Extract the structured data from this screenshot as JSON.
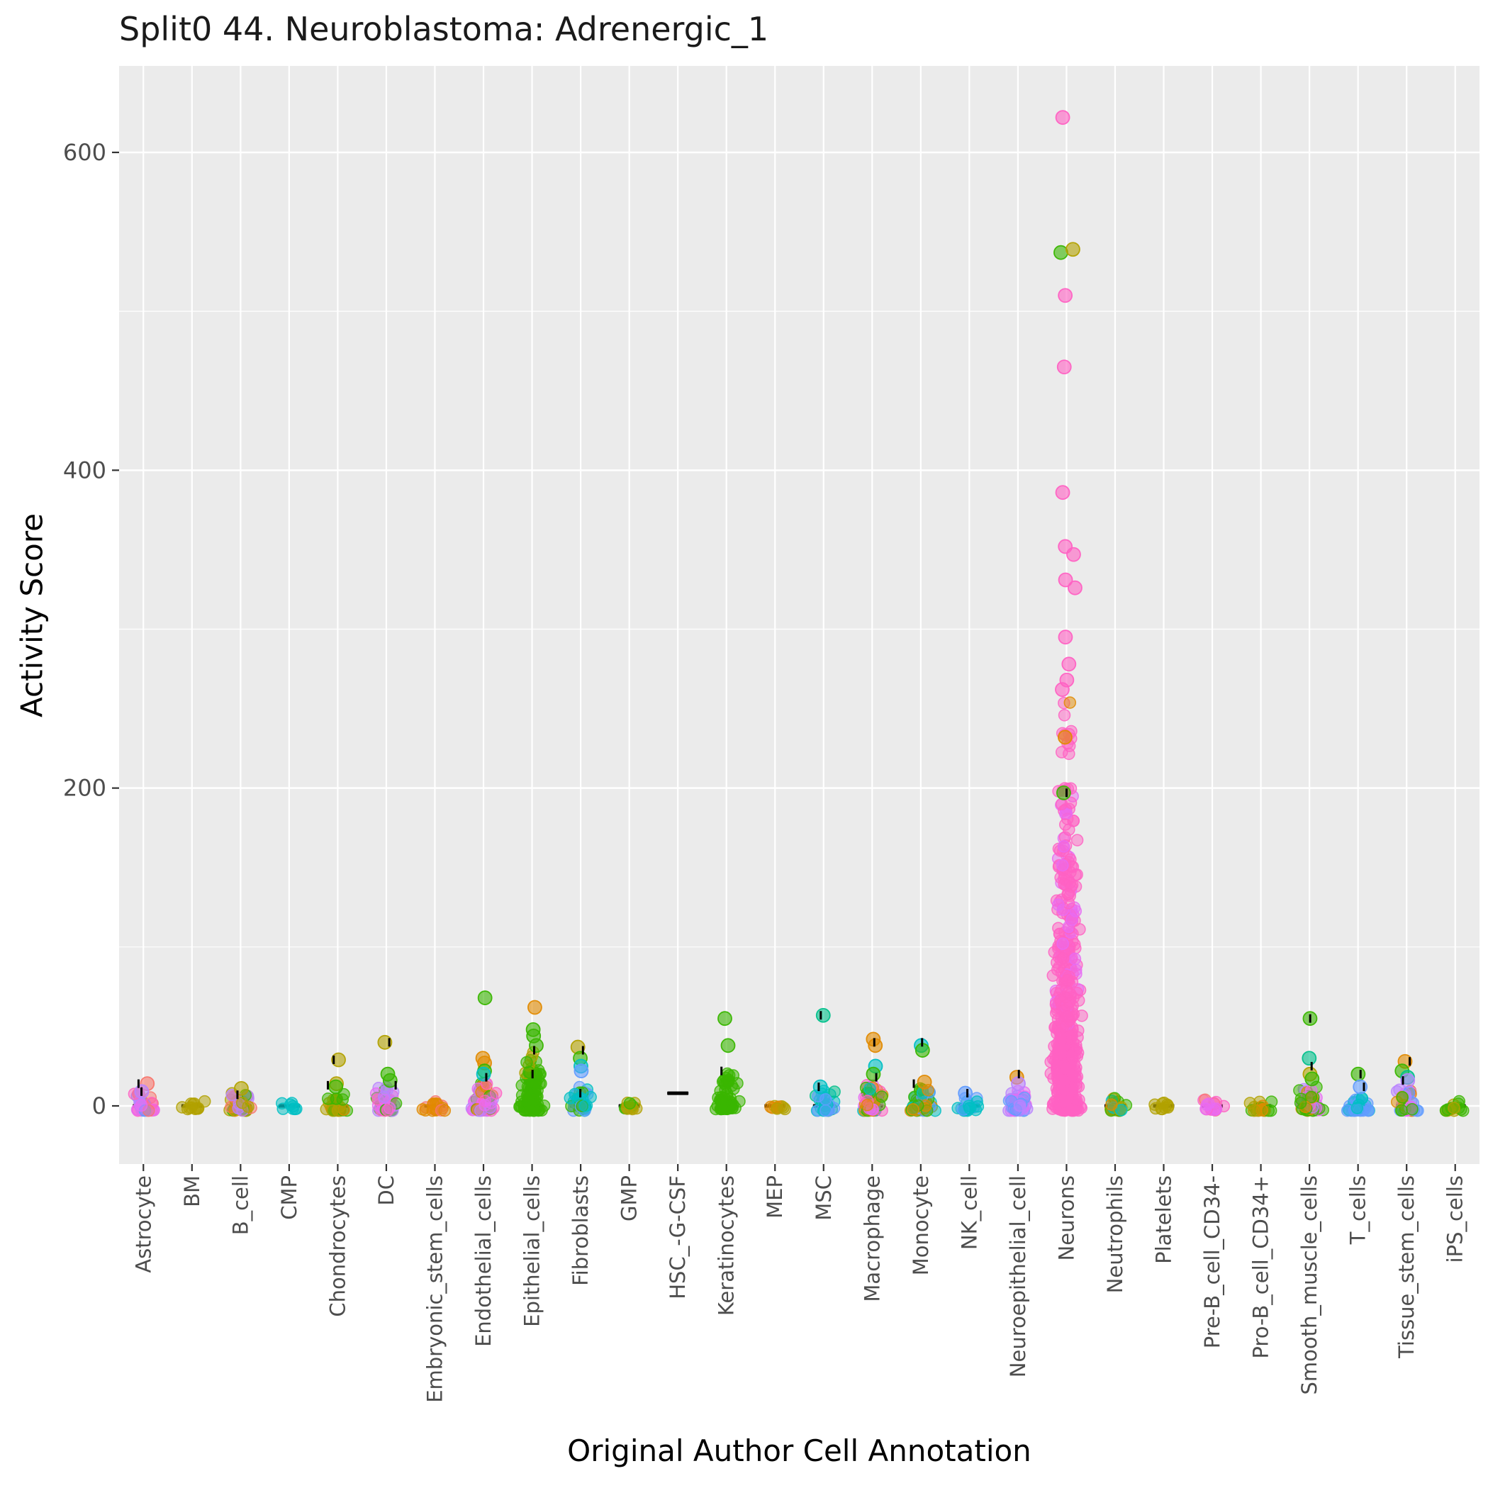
{
  "chart_data": {
    "type": "scatter",
    "subtype": "jitter-strip",
    "title": "Split0 44. Neuroblastoma: Adrenergic_1",
    "xlabel": "Original Author Cell Annotation",
    "ylabel": "Activity Score",
    "ylim": [
      -36,
      655
    ],
    "yticks": [
      0,
      200,
      400,
      600
    ],
    "ytick_labels": [
      "0",
      "200",
      "400",
      "600"
    ],
    "grid": "on",
    "legend": "none",
    "panel_background": "#EBEBEB",
    "gridline_color": "#FFFFFF",
    "tick_label_color": "#4D4D4D",
    "median_bar_color": "#000000",
    "point_alpha": 0.5,
    "palette": {
      "red": "#F8766D",
      "orange": "#E18A00",
      "olive": "#B2A100",
      "green": "#39B600",
      "teal": "#00C08B",
      "cyan": "#00BFC4",
      "blue": "#619CFF",
      "purple": "#B983FF",
      "magenta": "#E76BF3",
      "pink": "#FF61C3"
    },
    "categories": [
      {
        "label": "Astrocyte",
        "median": 0,
        "whiskers": [
          9,
          14
        ],
        "clusters": [
          {
            "n": 40,
            "ymin": -3,
            "ymax": 8,
            "colors": [
              "purple",
              "magenta",
              "red",
              "purple",
              "pink",
              "blue"
            ]
          }
        ],
        "outliers": [
          {
            "y": 14,
            "color": "red"
          },
          {
            "y": 9,
            "color": "purple"
          }
        ]
      },
      {
        "label": "BM",
        "median": 0,
        "whiskers": [],
        "clusters": [
          {
            "n": 12,
            "ymin": -2,
            "ymax": 3,
            "colors": [
              "olive"
            ]
          }
        ],
        "outliers": []
      },
      {
        "label": "B_cell",
        "median": 0,
        "whiskers": [
          7
        ],
        "clusters": [
          {
            "n": 45,
            "ymin": -3,
            "ymax": 8,
            "colors": [
              "olive",
              "orange",
              "green",
              "purple",
              "red"
            ]
          }
        ],
        "outliers": [
          {
            "y": 11,
            "color": "olive"
          }
        ]
      },
      {
        "label": "CMP",
        "median": 0,
        "whiskers": [],
        "clusters": [
          {
            "n": 8,
            "ymin": -2,
            "ymax": 2,
            "colors": [
              "cyan"
            ]
          }
        ],
        "outliers": []
      },
      {
        "label": "Chondrocytes",
        "median": 0,
        "whiskers": [
          13,
          29
        ],
        "clusters": [
          {
            "n": 30,
            "ymin": -3,
            "ymax": 10,
            "colors": [
              "olive",
              "green",
              "orange"
            ]
          }
        ],
        "outliers": [
          {
            "y": 29,
            "color": "olive"
          },
          {
            "y": 14,
            "color": "olive"
          },
          {
            "y": 12,
            "color": "green"
          }
        ]
      },
      {
        "label": "DC",
        "median": 0,
        "whiskers": [
          13,
          40
        ],
        "clusters": [
          {
            "n": 35,
            "ymin": -3,
            "ymax": 12,
            "colors": [
              "green",
              "magenta",
              "pink",
              "purple"
            ]
          }
        ],
        "outliers": [
          {
            "y": 40,
            "color": "olive"
          },
          {
            "y": 20,
            "color": "green"
          },
          {
            "y": 16,
            "color": "green"
          }
        ]
      },
      {
        "label": "Embryonic_stem_cells",
        "median": 0,
        "whiskers": [],
        "clusters": [
          {
            "n": 18,
            "ymin": -3,
            "ymax": 3,
            "colors": [
              "red",
              "orange"
            ]
          }
        ],
        "outliers": []
      },
      {
        "label": "Endothelial_cells",
        "median": 0,
        "whiskers": [
          18
        ],
        "clusters": [
          {
            "n": 60,
            "ymin": -3,
            "ymax": 15,
            "colors": [
              "orange",
              "green",
              "magenta",
              "pink",
              "purple"
            ]
          }
        ],
        "outliers": [
          {
            "y": 68,
            "color": "green"
          },
          {
            "y": 30,
            "color": "orange"
          },
          {
            "y": 27,
            "color": "orange"
          },
          {
            "y": 22,
            "color": "green"
          },
          {
            "y": 20,
            "color": "cyan"
          }
        ]
      },
      {
        "label": "Epithelial_cells",
        "median": 0,
        "whiskers": [
          20,
          35
        ],
        "clusters": [
          {
            "n": 80,
            "ymin": -3,
            "ymax": 20,
            "colors": [
              "green"
            ]
          },
          {
            "n": 15,
            "ymin": 20,
            "ymax": 35,
            "colors": [
              "green",
              "olive"
            ]
          }
        ],
        "outliers": [
          {
            "y": 62,
            "color": "orange"
          },
          {
            "y": 48,
            "color": "green"
          },
          {
            "y": 44,
            "color": "green"
          },
          {
            "y": 38,
            "color": "green"
          }
        ]
      },
      {
        "label": "Fibroblasts",
        "median": 0,
        "whiskers": [
          8,
          35
        ],
        "clusters": [
          {
            "n": 35,
            "ymin": -3,
            "ymax": 12,
            "colors": [
              "cyan",
              "green",
              "blue"
            ]
          }
        ],
        "outliers": [
          {
            "y": 37,
            "color": "olive"
          },
          {
            "y": 30,
            "color": "green"
          },
          {
            "y": 25,
            "color": "cyan"
          },
          {
            "y": 22,
            "color": "blue"
          }
        ]
      },
      {
        "label": "GMP",
        "median": 0,
        "whiskers": [],
        "clusters": [
          {
            "n": 12,
            "ymin": -2,
            "ymax": 2,
            "colors": [
              "green",
              "olive"
            ]
          }
        ],
        "outliers": []
      },
      {
        "label": "HSC_-G-CSF",
        "median": 8,
        "whiskers": [],
        "clusters": [],
        "outliers": []
      },
      {
        "label": "Keratinocytes",
        "median": 0,
        "whiskers": [
          22
        ],
        "clusters": [
          {
            "n": 50,
            "ymin": -2,
            "ymax": 15,
            "colors": [
              "green"
            ]
          },
          {
            "n": 10,
            "ymin": 15,
            "ymax": 22,
            "colors": [
              "green"
            ]
          }
        ],
        "outliers": [
          {
            "y": 55,
            "color": "green"
          },
          {
            "y": 38,
            "color": "green"
          }
        ]
      },
      {
        "label": "MEP",
        "median": 0,
        "whiskers": [],
        "clusters": [
          {
            "n": 10,
            "ymin": -2,
            "ymax": 2,
            "colors": [
              "olive",
              "orange"
            ]
          }
        ],
        "outliers": []
      },
      {
        "label": "MSC",
        "median": 0,
        "whiskers": [
          12,
          57
        ],
        "clusters": [
          {
            "n": 30,
            "ymin": -3,
            "ymax": 10,
            "colors": [
              "cyan",
              "teal",
              "blue"
            ]
          }
        ],
        "outliers": [
          {
            "y": 57,
            "color": "teal"
          },
          {
            "y": 12,
            "color": "cyan"
          }
        ]
      },
      {
        "label": "Macrophage",
        "median": 0,
        "whiskers": [
          18,
          40
        ],
        "clusters": [
          {
            "n": 60,
            "ymin": -3,
            "ymax": 15,
            "colors": [
              "magenta",
              "pink",
              "orange",
              "cyan",
              "green"
            ]
          }
        ],
        "outliers": [
          {
            "y": 42,
            "color": "orange"
          },
          {
            "y": 38,
            "color": "orange"
          },
          {
            "y": 25,
            "color": "cyan"
          },
          {
            "y": 20,
            "color": "green"
          }
        ]
      },
      {
        "label": "Monocyte",
        "median": 0,
        "whiskers": [
          14,
          40
        ],
        "clusters": [
          {
            "n": 45,
            "ymin": -3,
            "ymax": 12,
            "colors": [
              "cyan",
              "green",
              "orange",
              "blue"
            ]
          }
        ],
        "outliers": [
          {
            "y": 38,
            "color": "cyan"
          },
          {
            "y": 35,
            "color": "green"
          },
          {
            "y": 15,
            "color": "orange"
          }
        ]
      },
      {
        "label": "NK_cell",
        "median": 0,
        "whiskers": [
          8
        ],
        "clusters": [
          {
            "n": 20,
            "ymin": -3,
            "ymax": 5,
            "colors": [
              "blue",
              "cyan"
            ]
          }
        ],
        "outliers": [
          {
            "y": 8,
            "color": "blue"
          }
        ]
      },
      {
        "label": "Neuroepithelial_cell",
        "median": 0,
        "whiskers": [
          20
        ],
        "clusters": [
          {
            "n": 45,
            "ymin": -3,
            "ymax": 10,
            "colors": [
              "purple",
              "magenta",
              "blue"
            ]
          }
        ],
        "outliers": [
          {
            "y": 18,
            "color": "orange"
          },
          {
            "y": 14,
            "color": "purple"
          }
        ]
      },
      {
        "label": "Neurons",
        "median": 0,
        "whiskers": [
          197
        ],
        "clusters": [
          {
            "n": 320,
            "ymin": -3,
            "ymax": 50,
            "bias": 1.6,
            "colors": [
              "pink"
            ],
            "spread": 26
          },
          {
            "n": 130,
            "ymin": 50,
            "ymax": 110,
            "bias": 1.4,
            "colors": [
              "pink",
              "pink",
              "pink",
              "pink",
              "pink",
              "magenta"
            ],
            "spread": 24
          },
          {
            "n": 60,
            "ymin": 110,
            "ymax": 160,
            "bias": 1.3,
            "colors": [
              "pink",
              "pink",
              "pink",
              "pink",
              "magenta"
            ],
            "spread": 22
          },
          {
            "n": 30,
            "ymin": 160,
            "ymax": 200,
            "bias": 1.2,
            "colors": [
              "pink",
              "pink",
              "pink",
              "magenta"
            ],
            "spread": 18
          },
          {
            "n": 12,
            "ymin": 220,
            "ymax": 255,
            "bias": 1.0,
            "colors": [
              "pink",
              "pink",
              "pink",
              "orange"
            ],
            "spread": 14
          }
        ],
        "outliers": [
          {
            "y": 622,
            "color": "pink"
          },
          {
            "y": 537,
            "color": "green",
            "dx": -8
          },
          {
            "y": 539,
            "color": "olive",
            "dx": 9
          },
          {
            "y": 510,
            "color": "pink"
          },
          {
            "y": 465,
            "color": "pink"
          },
          {
            "y": 386,
            "color": "pink"
          },
          {
            "y": 352,
            "color": "pink"
          },
          {
            "y": 347,
            "color": "pink",
            "dx": 10
          },
          {
            "y": 331,
            "color": "pink"
          },
          {
            "y": 326,
            "color": "pink",
            "dx": 12
          },
          {
            "y": 295,
            "color": "pink"
          },
          {
            "y": 278,
            "color": "pink"
          },
          {
            "y": 268,
            "color": "pink"
          },
          {
            "y": 262,
            "color": "pink",
            "dx": -6
          },
          {
            "y": 232,
            "color": "orange"
          },
          {
            "y": 197,
            "color": "green"
          }
        ]
      },
      {
        "label": "Neutrophils",
        "median": 0,
        "whiskers": [],
        "clusters": [
          {
            "n": 25,
            "ymin": -3,
            "ymax": 6,
            "colors": [
              "green",
              "olive",
              "cyan",
              "orange"
            ]
          }
        ],
        "outliers": []
      },
      {
        "label": "Platelets",
        "median": 0,
        "whiskers": [],
        "clusters": [
          {
            "n": 10,
            "ymin": -2,
            "ymax": 2,
            "colors": [
              "olive"
            ]
          }
        ],
        "outliers": []
      },
      {
        "label": "Pre-B_cell_CD34-",
        "median": 0,
        "whiskers": [],
        "clusters": [
          {
            "n": 18,
            "ymin": -3,
            "ymax": 4,
            "colors": [
              "magenta",
              "red",
              "pink"
            ]
          }
        ],
        "outliers": []
      },
      {
        "label": "Pro-B_cell_CD34+",
        "median": 0,
        "whiskers": [],
        "clusters": [
          {
            "n": 18,
            "ymin": -3,
            "ymax": 4,
            "colors": [
              "olive",
              "green",
              "orange"
            ]
          }
        ],
        "outliers": []
      },
      {
        "label": "Smooth_muscle_cells",
        "median": 0,
        "whiskers": [
          25,
          55
        ],
        "clusters": [
          {
            "n": 40,
            "ymin": -3,
            "ymax": 12,
            "colors": [
              "purple",
              "magenta",
              "green",
              "orange"
            ]
          }
        ],
        "outliers": [
          {
            "y": 55,
            "color": "green"
          },
          {
            "y": 30,
            "color": "teal"
          },
          {
            "y": 20,
            "color": "olive"
          },
          {
            "y": 17,
            "color": "green"
          }
        ]
      },
      {
        "label": "T_cells",
        "median": 0,
        "whiskers": [
          12,
          20
        ],
        "clusters": [
          {
            "n": 40,
            "ymin": -3,
            "ymax": 8,
            "colors": [
              "blue",
              "cyan"
            ]
          }
        ],
        "outliers": [
          {
            "y": 20,
            "color": "green"
          },
          {
            "y": 12,
            "color": "blue"
          }
        ]
      },
      {
        "label": "Tissue_stem_cells",
        "median": 0,
        "whiskers": [
          16,
          28
        ],
        "clusters": [
          {
            "n": 40,
            "ymin": -3,
            "ymax": 12,
            "colors": [
              "orange",
              "purple",
              "green",
              "magenta",
              "blue"
            ]
          }
        ],
        "outliers": [
          {
            "y": 28,
            "color": "orange"
          },
          {
            "y": 22,
            "color": "green"
          },
          {
            "y": 18,
            "color": "teal"
          },
          {
            "y": 16,
            "color": "purple"
          }
        ]
      },
      {
        "label": "iPS_cells",
        "median": 0,
        "whiskers": [],
        "clusters": [
          {
            "n": 15,
            "ymin": -3,
            "ymax": 3,
            "colors": [
              "olive",
              "green"
            ]
          }
        ],
        "outliers": []
      }
    ]
  }
}
